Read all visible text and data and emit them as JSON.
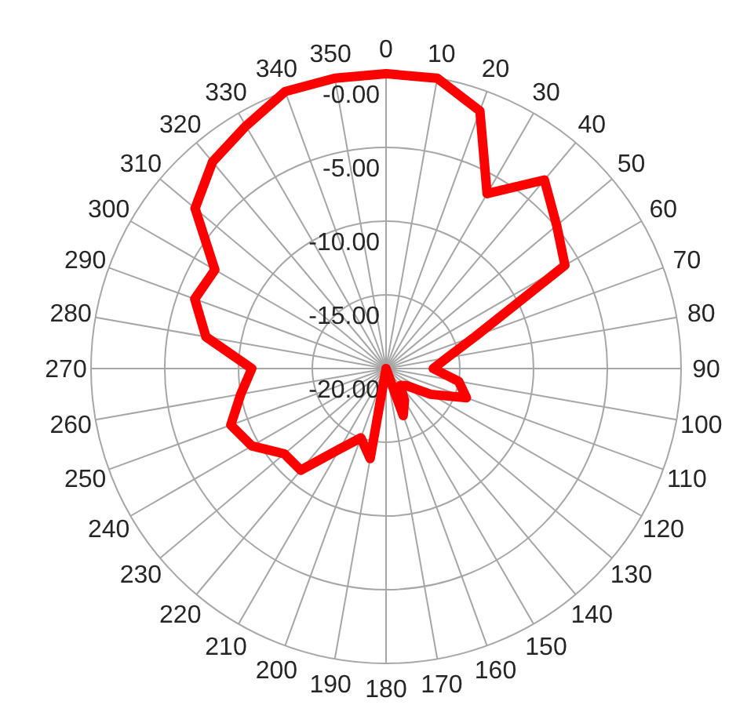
{
  "chart_data": {
    "type": "radar",
    "categories": [
      "0",
      "10",
      "20",
      "30",
      "40",
      "50",
      "60",
      "70",
      "80",
      "90",
      "100",
      "110",
      "120",
      "130",
      "140",
      "150",
      "160",
      "170",
      "180",
      "190",
      "200",
      "210",
      "220",
      "230",
      "240",
      "250",
      "260",
      "270",
      "280",
      "290",
      "300",
      "310",
      "320",
      "330",
      "340",
      "350"
    ],
    "series": [
      {
        "color": "#ff0000",
        "values": [
          0,
          0,
          -1.4,
          -6.3,
          -3.3,
          -4.9,
          -6,
          -13.5,
          -15.8,
          -16.8,
          -15,
          -14.2,
          -16.5,
          -18.2,
          -18.5,
          -17.5,
          -16.6,
          -20,
          -20,
          -13.8,
          -15,
          -13.7,
          -11,
          -11,
          -9.5,
          -8.8,
          -10,
          -10.9,
          -7.6,
          -6.2,
          -6.6,
          -3.1,
          -1.7,
          -1,
          0,
          0
        ]
      }
    ],
    "ylim": [
      -20,
      0
    ],
    "yticks": [
      {
        "value": -20,
        "label": "-20.00"
      },
      {
        "value": -15,
        "label": "-15.00"
      },
      {
        "value": -10,
        "label": "-10.00"
      },
      {
        "value": -5,
        "label": "-5.00"
      },
      {
        "value": 0,
        "label": "-0.00"
      }
    ],
    "grid": true,
    "marker": "none",
    "line_style": "solid"
  }
}
